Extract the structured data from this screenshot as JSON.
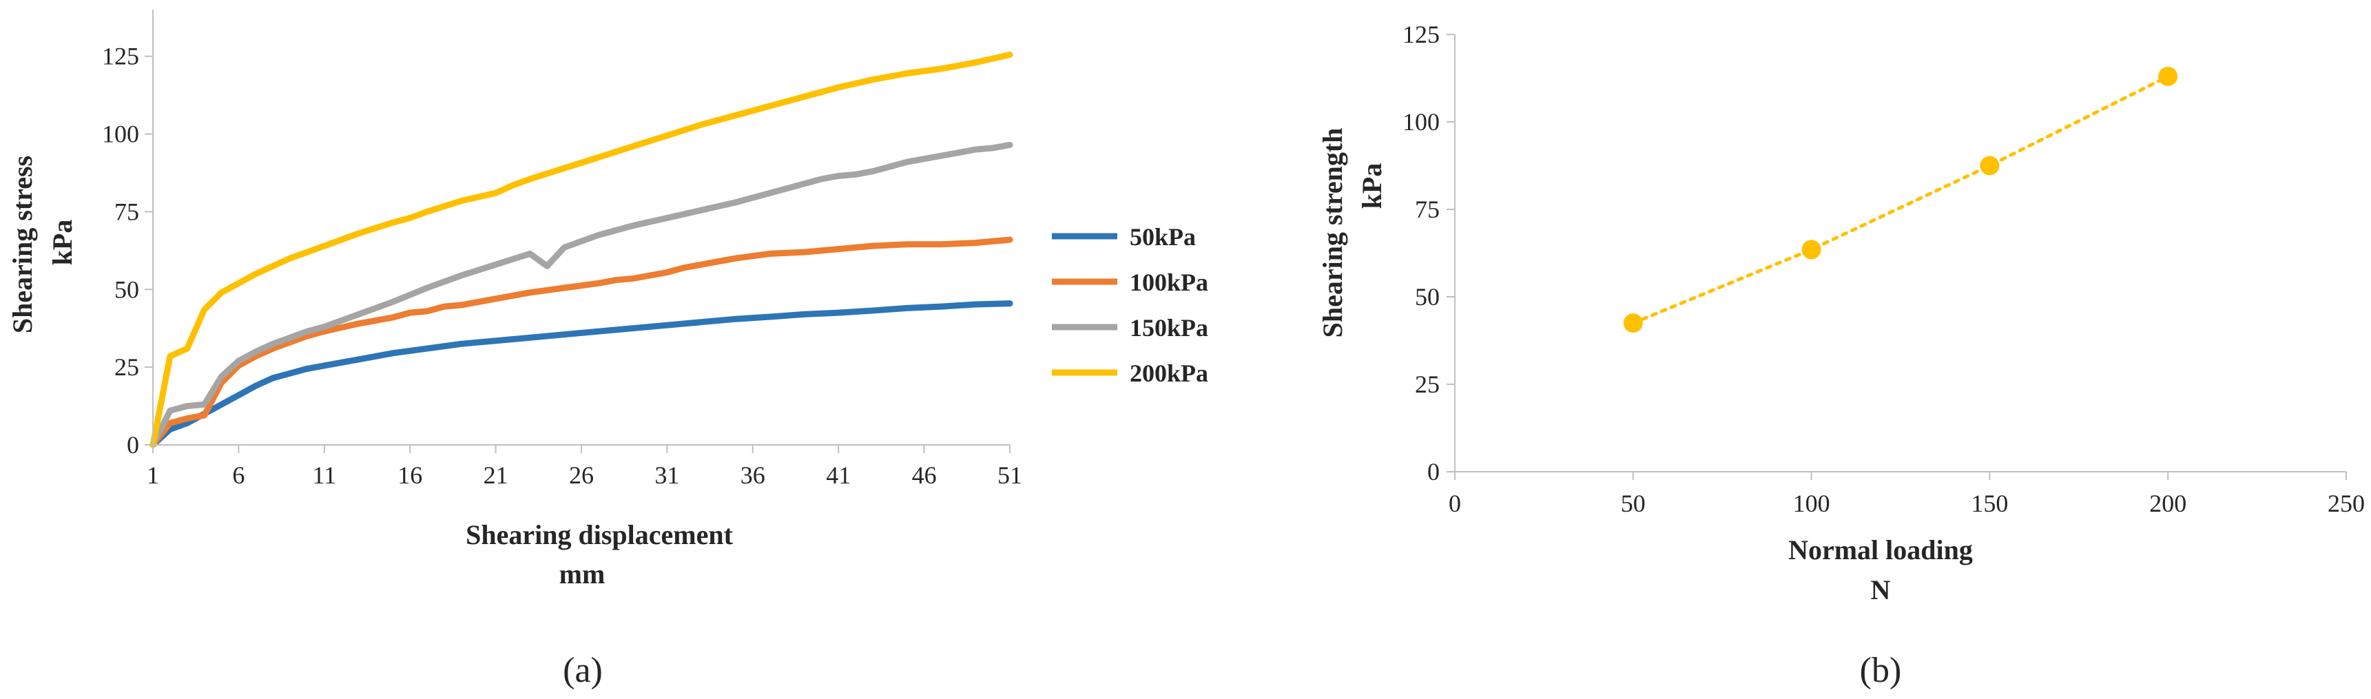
{
  "colors": {
    "series_50": "#2E75B6",
    "series_100": "#ED7D31",
    "series_150": "#A5A5A5",
    "series_200": "#FFC000",
    "axis": "#bfbfbf",
    "text": "#262626"
  },
  "chart_data": [
    {
      "id": "a",
      "type": "line",
      "caption": "(a)",
      "xlabel": "Shearing displacement",
      "xunit": "mm",
      "ylabel": "Shearing stress",
      "yunit": "kPa",
      "x_range": [
        1,
        51
      ],
      "x_ticks": [
        1,
        6,
        11,
        16,
        21,
        26,
        31,
        36,
        41,
        46,
        51
      ],
      "y_range": [
        0,
        140
      ],
      "y_ticks": [
        0,
        25,
        50,
        75,
        100,
        125
      ],
      "grid": false,
      "legend_position": "right",
      "series": [
        {
          "name": "50kPa",
          "x": [
            1,
            2,
            3,
            4,
            5,
            6,
            7,
            8,
            9,
            10,
            11,
            13,
            15,
            17,
            19,
            21,
            23,
            25,
            27,
            29,
            31,
            33,
            35,
            37,
            39,
            41,
            43,
            45,
            47,
            49,
            51
          ],
          "values": [
            0,
            5,
            7,
            10,
            13,
            16,
            19,
            21.5,
            23,
            24.5,
            25.5,
            27.5,
            29.5,
            31,
            32.5,
            33.5,
            34.5,
            35.5,
            36.5,
            37.5,
            38.5,
            39.5,
            40.5,
            41.2,
            42,
            42.5,
            43.2,
            44,
            44.5,
            45.2,
            45.5
          ]
        },
        {
          "name": "100kPa",
          "x": [
            1,
            2,
            3,
            4,
            5,
            6,
            7,
            8,
            9,
            10,
            11,
            13,
            15,
            16,
            17,
            18,
            19,
            21,
            23,
            25,
            27,
            28,
            29,
            31,
            32,
            33,
            35,
            37,
            39,
            41,
            43,
            45,
            47,
            49,
            51
          ],
          "values": [
            0,
            7,
            8.5,
            9.5,
            20,
            25.5,
            28.5,
            31,
            33,
            35,
            36.5,
            39,
            41,
            42.5,
            43,
            44.5,
            45,
            47,
            49,
            50.5,
            52,
            53,
            53.5,
            55.5,
            57,
            58,
            60,
            61.5,
            62,
            63,
            64,
            64.5,
            64.5,
            65,
            66
          ]
        },
        {
          "name": "150kPa",
          "x": [
            1,
            2,
            3,
            4,
            5,
            6,
            7,
            8,
            9,
            10,
            11,
            13,
            15,
            17,
            19,
            21,
            23,
            24,
            25,
            27,
            29,
            31,
            33,
            35,
            37,
            39,
            40,
            41,
            42,
            43,
            44,
            45,
            46,
            47,
            48,
            49,
            50,
            51
          ],
          "values": [
            0,
            11,
            12.5,
            13,
            22,
            27,
            30,
            32.5,
            34.5,
            36.5,
            38,
            42,
            46,
            50.5,
            54.5,
            58,
            61.5,
            57.5,
            63.5,
            67.5,
            70.5,
            73,
            75.5,
            78,
            81,
            84,
            85.5,
            86.5,
            87,
            88,
            89.5,
            91,
            92,
            93,
            94,
            95,
            95.5,
            96.5
          ]
        },
        {
          "name": "200kPa",
          "x": [
            1,
            2,
            3,
            4,
            5,
            6,
            7,
            8,
            9,
            10,
            11,
            13,
            15,
            16,
            17,
            19,
            21,
            22,
            23,
            25,
            27,
            29,
            31,
            33,
            35,
            37,
            39,
            41,
            43,
            45,
            47,
            49,
            51
          ],
          "values": [
            0,
            28.5,
            31,
            43.5,
            49,
            52,
            55,
            57.5,
            60,
            62,
            64,
            68,
            71.5,
            73,
            75,
            78.5,
            81,
            83.5,
            85.5,
            89,
            92.5,
            96,
            99.5,
            103,
            106,
            109,
            112,
            115,
            117.5,
            119.5,
            121,
            123,
            125.5
          ]
        }
      ]
    },
    {
      "id": "b",
      "type": "scatter",
      "caption": "(b)",
      "xlabel": "Normal loading",
      "xunit": "N",
      "ylabel": "Shearing strength",
      "yunit": "kPa",
      "x_range": [
        0,
        250
      ],
      "x_ticks": [
        0,
        50,
        100,
        150,
        200,
        250
      ],
      "y_range": [
        0,
        125
      ],
      "y_ticks": [
        0,
        25,
        50,
        75,
        100,
        125
      ],
      "grid": false,
      "trendline": "dotted",
      "series": [
        {
          "name": "Shearing strength",
          "x": [
            50,
            100,
            150,
            200
          ],
          "values": [
            42.5,
            63.5,
            87.5,
            113
          ]
        }
      ]
    }
  ]
}
